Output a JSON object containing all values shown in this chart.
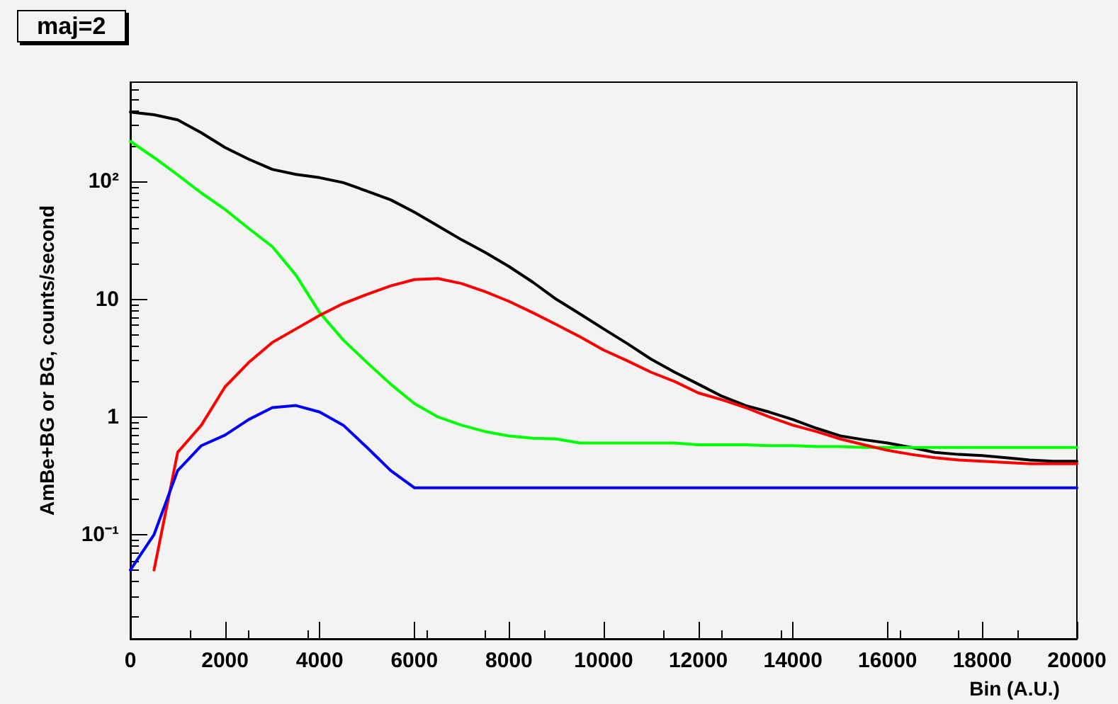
{
  "chart_data": {
    "type": "line",
    "title": "maj=2",
    "xlabel": "Bin (A.U.)",
    "ylabel": "AmBe+BG or BG, counts/second",
    "x": [
      0,
      500,
      1000,
      1500,
      2000,
      2500,
      3000,
      3500,
      4000,
      4500,
      5000,
      5500,
      6000,
      6500,
      7000,
      7500,
      8000,
      8500,
      9000,
      9500,
      10000,
      10500,
      11000,
      11500,
      12000,
      12500,
      13000,
      13500,
      14000,
      14500,
      15000,
      15500,
      16000,
      16500,
      17000,
      17500,
      18000,
      18500,
      19000,
      19500,
      20000
    ],
    "series": [
      {
        "color": "#000000",
        "values": [
          390,
          370,
          335,
          260,
          195,
          155,
          127,
          115,
          108,
          98,
          83,
          70,
          55,
          42,
          32,
          25,
          19,
          14,
          10,
          7.5,
          5.6,
          4.2,
          3.1,
          2.4,
          1.9,
          1.5,
          1.25,
          1.1,
          0.95,
          0.8,
          0.69,
          0.64,
          0.6,
          0.55,
          0.5,
          0.48,
          0.47,
          0.45,
          0.43,
          0.42,
          0.42
        ]
      },
      {
        "color": "#00ff00",
        "values": [
          220,
          160,
          114,
          80,
          58,
          40,
          28,
          16,
          7.7,
          4.5,
          2.9,
          1.9,
          1.3,
          1.0,
          0.85,
          0.75,
          0.69,
          0.66,
          0.65,
          0.6,
          0.6,
          0.6,
          0.6,
          0.6,
          0.58,
          0.58,
          0.58,
          0.57,
          0.57,
          0.56,
          0.56,
          0.55,
          0.55,
          0.55,
          0.55,
          0.55,
          0.55,
          0.55,
          0.55,
          0.55,
          0.55
        ]
      },
      {
        "color": "#ff0000",
        "values": [
          null,
          0.05,
          0.5,
          0.85,
          1.8,
          2.9,
          4.3,
          5.6,
          7.3,
          9.2,
          11,
          13,
          14.7,
          15,
          13.6,
          11.6,
          9.6,
          7.7,
          6.1,
          4.8,
          3.7,
          3.0,
          2.4,
          2.0,
          1.6,
          1.4,
          1.2,
          1.0,
          0.85,
          0.75,
          0.65,
          0.58,
          0.52,
          0.48,
          0.45,
          0.43,
          0.42,
          0.41,
          0.4,
          0.4,
          0.4
        ]
      },
      {
        "color": "#0000ff",
        "values": [
          0.05,
          0.1,
          0.35,
          0.57,
          0.7,
          0.95,
          1.2,
          1.25,
          1.1,
          0.85,
          0.55,
          0.35,
          0.25,
          0.25,
          0.25,
          0.25,
          0.25,
          0.25,
          0.25,
          0.25,
          0.25,
          0.25,
          0.25,
          0.25,
          0.25,
          0.25,
          0.25,
          0.25,
          0.25,
          0.25,
          0.25,
          0.25,
          0.25,
          0.25,
          0.25,
          0.25,
          0.25,
          0.25,
          0.25,
          0.25,
          0.25
        ]
      }
    ],
    "xlim": [
      0,
      20000
    ],
    "xticks": [
      0,
      2000,
      4000,
      6000,
      8000,
      10000,
      12000,
      14000,
      16000,
      18000,
      20000
    ],
    "ylim": [
      0.013,
      700
    ],
    "yticks": [
      {
        "value": 0.1,
        "label": "10⁻¹"
      },
      1,
      10,
      {
        "value": 100,
        "label": "10²"
      }
    ],
    "log": "y",
    "grid": false,
    "legend": false,
    "marker": "none",
    "line_style": "solid"
  }
}
